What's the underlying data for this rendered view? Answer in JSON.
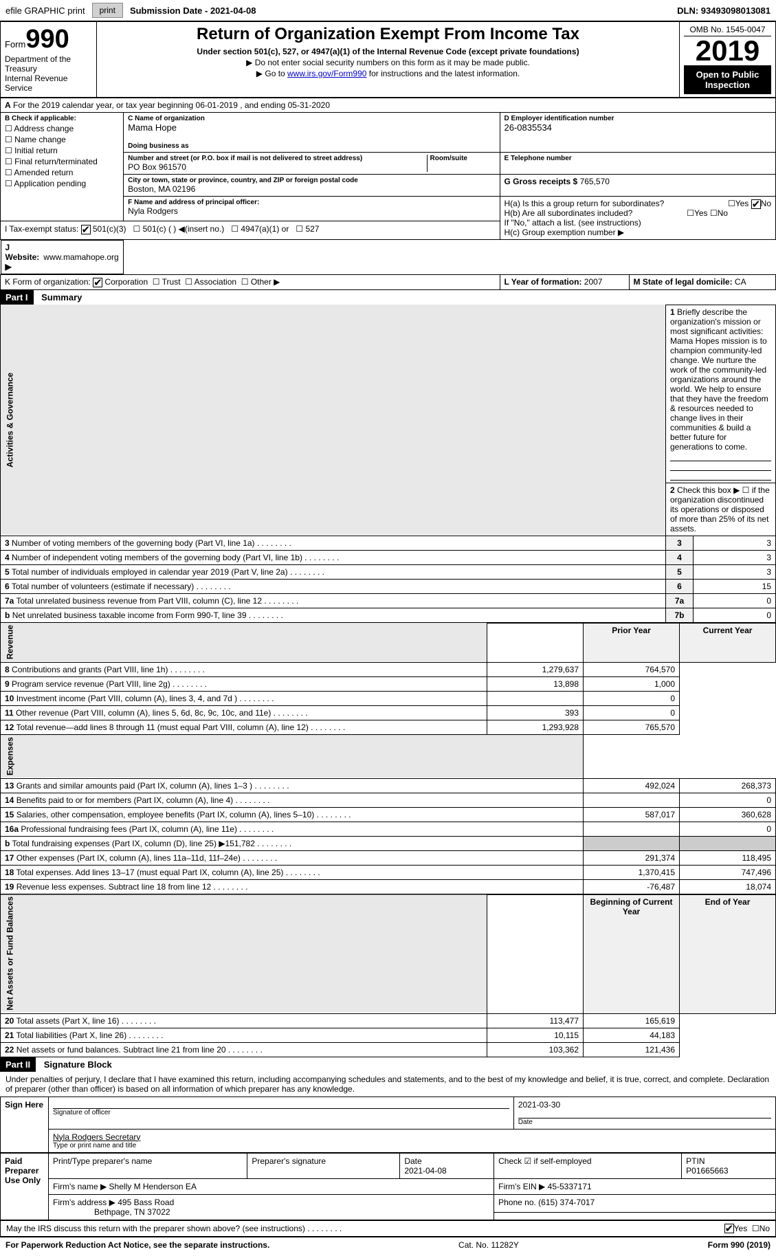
{
  "top": {
    "efile": "efile GRAPHIC print",
    "submission": "Submission Date - 2021-04-08",
    "dln": "DLN: 93493098013081"
  },
  "header": {
    "form": "Form",
    "num": "990",
    "dept1": "Department of the Treasury",
    "dept2": "Internal Revenue Service",
    "title": "Return of Organization Exempt From Income Tax",
    "sub": "Under section 501(c), 527, or 4947(a)(1) of the Internal Revenue Code (except private foundations)",
    "line1": "▶ Do not enter social security numbers on this form as it may be made public.",
    "line2a": "▶ Go to ",
    "line2b": "www.irs.gov/Form990",
    "line2c": " for instructions and the latest information.",
    "omb": "OMB No. 1545-0047",
    "year": "2019",
    "open": "Open to Public Inspection"
  },
  "a": {
    "line": "For the 2019 calendar year, or tax year beginning 06-01-2019   , and ending 05-31-2020"
  },
  "b": {
    "label": "B Check if applicable:",
    "opts": [
      "Address change",
      "Name change",
      "Initial return",
      "Final return/terminated",
      "Amended return",
      "Application pending"
    ]
  },
  "c": {
    "name_label": "C Name of organization",
    "name": "Mama Hope",
    "dba_label": "Doing business as",
    "street_label": "Number and street (or P.O. box if mail is not delivered to street address)",
    "room_label": "Room/suite",
    "street": "PO Box 961570",
    "city_label": "City or town, state or province, country, and ZIP or foreign postal code",
    "city": "Boston, MA  02196"
  },
  "d": {
    "label": "D Employer identification number",
    "val": "26-0835534"
  },
  "e": {
    "label": "E Telephone number",
    "val": ""
  },
  "g": {
    "label": "G Gross receipts $",
    "val": "765,570"
  },
  "f": {
    "label": "F  Name and address of principal officer:",
    "name": "Nyla Rodgers"
  },
  "h": {
    "a": "H(a)  Is this a group return for subordinates?",
    "b": "H(b)  Are all subordinates included?",
    "note": "If \"No,\" attach a list. (see instructions)",
    "c": "H(c)  Group exemption number ▶",
    "yes": "Yes",
    "no": "No"
  },
  "i": {
    "label": "I   Tax-exempt status:",
    "o1": "501(c)(3)",
    "o2": "501(c) (  ) ◀(insert no.)",
    "o3": "4947(a)(1) or",
    "o4": "527"
  },
  "j": {
    "label": "J   Website: ▶",
    "val": "www.mamahope.org"
  },
  "k": {
    "label": "K Form of organization:",
    "o1": "Corporation",
    "o2": "Trust",
    "o3": "Association",
    "o4": "Other ▶"
  },
  "l": {
    "label": "L Year of formation:",
    "val": "2007"
  },
  "m": {
    "label": "M State of legal domicile:",
    "val": "CA"
  },
  "part1": {
    "bar": "Part I",
    "title": "Summary"
  },
  "gov": {
    "vert": "Activities & Governance",
    "l1": "Briefly describe the organization's mission or most significant activities:",
    "mission": "Mama Hopes mission is to champion community-led change. We nurture the work of the community-led organizations around the world. We help to ensure that they have the freedom & resources needed to change lives in their communities & build a better future for generations to come.",
    "l2": "Check this box ▶ ☐  if the organization discontinued its operations or disposed of more than 25% of its net assets.",
    "rows": [
      {
        "n": "3",
        "t": "Number of voting members of the governing body (Part VI, line 1a)",
        "r": "3",
        "v": "3"
      },
      {
        "n": "4",
        "t": "Number of independent voting members of the governing body (Part VI, line 1b)",
        "r": "4",
        "v": "3"
      },
      {
        "n": "5",
        "t": "Total number of individuals employed in calendar year 2019 (Part V, line 2a)",
        "r": "5",
        "v": "3"
      },
      {
        "n": "6",
        "t": "Total number of volunteers (estimate if necessary)",
        "r": "6",
        "v": "15"
      },
      {
        "n": "7a",
        "t": "Total unrelated business revenue from Part VIII, column (C), line 12",
        "r": "7a",
        "v": "0"
      },
      {
        "n": "b",
        "t": "Net unrelated business taxable income from Form 990-T, line 39",
        "r": "7b",
        "v": "0"
      }
    ]
  },
  "rev": {
    "vert": "Revenue",
    "h1": "Prior Year",
    "h2": "Current Year",
    "rows": [
      {
        "n": "8",
        "t": "Contributions and grants (Part VIII, line 1h)",
        "p": "1,279,637",
        "c": "764,570"
      },
      {
        "n": "9",
        "t": "Program service revenue (Part VIII, line 2g)",
        "p": "13,898",
        "c": "1,000"
      },
      {
        "n": "10",
        "t": "Investment income (Part VIII, column (A), lines 3, 4, and 7d )",
        "p": "",
        "c": "0"
      },
      {
        "n": "11",
        "t": "Other revenue (Part VIII, column (A), lines 5, 6d, 8c, 9c, 10c, and 11e)",
        "p": "393",
        "c": "0"
      },
      {
        "n": "12",
        "t": "Total revenue—add lines 8 through 11 (must equal Part VIII, column (A), line 12)",
        "p": "1,293,928",
        "c": "765,570"
      }
    ]
  },
  "exp": {
    "vert": "Expenses",
    "rows": [
      {
        "n": "13",
        "t": "Grants and similar amounts paid (Part IX, column (A), lines 1–3 )",
        "p": "492,024",
        "c": "268,373"
      },
      {
        "n": "14",
        "t": "Benefits paid to or for members (Part IX, column (A), line 4)",
        "p": "",
        "c": "0"
      },
      {
        "n": "15",
        "t": "Salaries, other compensation, employee benefits (Part IX, column (A), lines 5–10)",
        "p": "587,017",
        "c": "360,628"
      },
      {
        "n": "16a",
        "t": "Professional fundraising fees (Part IX, column (A), line 11e)",
        "p": "",
        "c": "0"
      },
      {
        "n": "b",
        "t": "Total fundraising expenses (Part IX, column (D), line 25) ▶151,782",
        "p": "shaded",
        "c": "shaded"
      },
      {
        "n": "17",
        "t": "Other expenses (Part IX, column (A), lines 11a–11d, 11f–24e)",
        "p": "291,374",
        "c": "118,495"
      },
      {
        "n": "18",
        "t": "Total expenses. Add lines 13–17 (must equal Part IX, column (A), line 25)",
        "p": "1,370,415",
        "c": "747,496"
      },
      {
        "n": "19",
        "t": "Revenue less expenses. Subtract line 18 from line 12",
        "p": "-76,487",
        "c": "18,074"
      }
    ]
  },
  "net": {
    "vert": "Net Assets or Fund Balances",
    "h1": "Beginning of Current Year",
    "h2": "End of Year",
    "rows": [
      {
        "n": "20",
        "t": "Total assets (Part X, line 16)",
        "p": "113,477",
        "c": "165,619"
      },
      {
        "n": "21",
        "t": "Total liabilities (Part X, line 26)",
        "p": "10,115",
        "c": "44,183"
      },
      {
        "n": "22",
        "t": "Net assets or fund balances. Subtract line 21 from line 20",
        "p": "103,362",
        "c": "121,436"
      }
    ]
  },
  "part2": {
    "bar": "Part II",
    "title": "Signature Block"
  },
  "sig": {
    "perjury": "Under penalties of perjury, I declare that I have examined this return, including accompanying schedules and statements, and to the best of my knowledge and belief, it is true, correct, and complete. Declaration of preparer (other than officer) is based on all information of which preparer has any knowledge.",
    "sign_here": "Sign Here",
    "sig_officer": "Signature of officer",
    "date": "Date",
    "date_val": "2021-03-30",
    "name": "Nyla Rodgers  Secretary",
    "name_label": "Type or print name and title"
  },
  "prep": {
    "left": "Paid Preparer Use Only",
    "h1": "Print/Type preparer's name",
    "h2": "Preparer's signature",
    "h3": "Date",
    "h4": "Check ☑ if self-employed",
    "h5": "PTIN",
    "date": "2021-04-08",
    "ptin": "P01665663",
    "firm_label": "Firm's name   ▶",
    "firm": "Shelly M Henderson EA",
    "ein_label": "Firm's EIN ▶",
    "ein": "45-5337171",
    "addr_label": "Firm's address ▶",
    "addr1": "495 Bass Road",
    "addr2": "Bethpage, TN  37022",
    "phone_label": "Phone no.",
    "phone": "(615) 374-7017"
  },
  "discuss": {
    "t": "May the IRS discuss this return with the preparer shown above? (see instructions)",
    "yes": "Yes",
    "no": "No"
  },
  "footer": {
    "left": "For Paperwork Reduction Act Notice, see the separate instructions.",
    "mid": "Cat. No. 11282Y",
    "right": "Form 990 (2019)"
  }
}
